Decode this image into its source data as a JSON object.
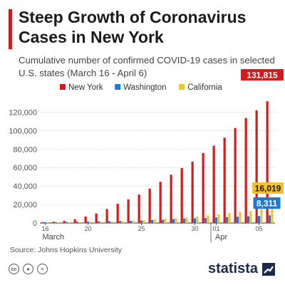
{
  "header": {
    "title": "Steep Growth of Coronavirus Cases in New York",
    "subtitle": "Cumulative number of confirmed COVID-19 cases in selected U.S. states (March 16 - April 6)"
  },
  "footer": {
    "source": "Source: Johns Hopkins University",
    "brand": "statista",
    "license_icons": [
      "cc-icon",
      "by-icon",
      "nd-icon"
    ]
  },
  "colors": {
    "New York": "#d7191c",
    "Washington": "#1f78d1",
    "California": "#f2c12e",
    "accent": "#d7191c"
  },
  "chart_data": {
    "type": "bar",
    "title": "Steep Growth of Coronavirus Cases in New York",
    "subtitle": "Cumulative number of confirmed COVID-19 cases in selected U.S. states (March 16 - April 6)",
    "categories": [
      "16",
      "17",
      "18",
      "19",
      "20",
      "21",
      "22",
      "23",
      "24",
      "25",
      "26",
      "27",
      "28",
      "29",
      "30",
      "31",
      "01",
      "02",
      "03",
      "04",
      "05",
      "06"
    ],
    "x_tick_labels": [
      "16",
      "20",
      "25",
      "30",
      "01",
      "05"
    ],
    "x_group_labels": [
      "March",
      "Apr"
    ],
    "ylim": [
      0,
      135000
    ],
    "yticks": [
      "0",
      "20,000",
      "40,000",
      "60,000",
      "80,000",
      "100,000",
      "120,000"
    ],
    "ytick_values": [
      0,
      20000,
      40000,
      60000,
      80000,
      100000,
      120000
    ],
    "legend_position": "top-center",
    "series": [
      {
        "name": "New York",
        "values": [
          950,
          1374,
          2382,
          4152,
          7102,
          10356,
          15168,
          20875,
          25665,
          30811,
          37258,
          44635,
          52318,
          59513,
          66497,
          75795,
          83712,
          92381,
          102870,
          113704,
          122031,
          131815
        ]
      },
      {
        "name": "Washington",
        "values": [
          769,
          904,
          1076,
          1376,
          1524,
          1793,
          1996,
          2221,
          2328,
          2591,
          3207,
          3477,
          4310,
          4896,
          5179,
          5305,
          5984,
          6389,
          6846,
          7247,
          7591,
          8311
        ]
      },
      {
        "name": "California",
        "values": [
          557,
          698,
          751,
          952,
          1177,
          1364,
          1642,
          2108,
          2538,
          2998,
          3899,
          4657,
          5095,
          5852,
          7138,
          8210,
          9399,
          10773,
          12004,
          12837,
          15034,
          16019
        ]
      }
    ],
    "data_labels": [
      {
        "series": "New York",
        "category": "06",
        "text": "131,815"
      },
      {
        "series": "California",
        "category": "06",
        "text": "16,019"
      },
      {
        "series": "Washington",
        "category": "06",
        "text": "8,311"
      }
    ]
  }
}
